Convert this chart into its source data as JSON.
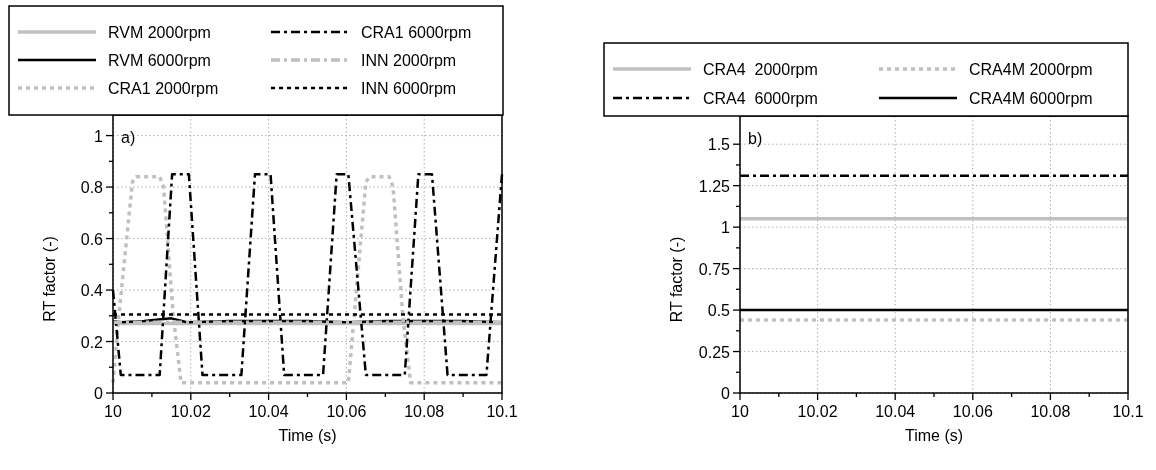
{
  "chart_data": [
    {
      "type": "line",
      "xlabel": "Time (s)",
      "ylabel": "RT factor (-)",
      "annotations": [
        "a)"
      ],
      "grid": true,
      "legend": "top",
      "xlim": [
        10,
        10.1
      ],
      "xticks": [
        10,
        {
          "value": 10.01,
          "label": null
        },
        10.02,
        {
          "value": 10.03,
          "label": null
        },
        10.04,
        {
          "value": 10.05,
          "label": null
        },
        10.06,
        {
          "value": 10.07,
          "label": null
        },
        10.08,
        {
          "value": 10.09,
          "label": null
        },
        10.1
      ],
      "ylim": [
        0,
        1.08
      ],
      "yticks": [
        0,
        {
          "value": 0.1,
          "label": null
        },
        0.2,
        {
          "value": 0.3,
          "label": null
        },
        0.4,
        {
          "value": 0.5,
          "label": null
        },
        0.6,
        {
          "value": 0.7,
          "label": null
        },
        0.8,
        {
          "value": 0.9,
          "label": null
        },
        1
      ],
      "series": [
        {
          "name": "RVM 2000rpm",
          "color": "#c0c0c0",
          "line_style": "solid",
          "x": [
            10,
            10.02,
            10.04,
            10.06,
            10.08,
            10.1
          ],
          "values": [
            0.27,
            0.27,
            0.27,
            0.27,
            0.27,
            0.27
          ]
        },
        {
          "name": "RVM 6000rpm",
          "color": "#000000",
          "line_style": "solid",
          "x": [
            10,
            10.002,
            10.008,
            10.015,
            10.019,
            10.03,
            10.04,
            10.05,
            10.06,
            10.07,
            10.08,
            10.09,
            10.1
          ],
          "values": [
            0.28,
            0.275,
            0.28,
            0.29,
            0.275,
            0.28,
            0.28,
            0.28,
            0.275,
            0.28,
            0.28,
            0.28,
            0.275
          ]
        },
        {
          "name": "CRA1 2000rpm",
          "color": "#c0c0c0",
          "line_style": "dotted",
          "x": [
            10,
            10.0015,
            10.005,
            10.006,
            10.012,
            10.013,
            10.0155,
            10.0175,
            10.0605,
            10.062,
            10.065,
            10.066,
            10.071,
            10.072,
            10.0745,
            10.0765,
            10.1
          ],
          "values": [
            0.04,
            0.3,
            0.82,
            0.84,
            0.84,
            0.8,
            0.3,
            0.04,
            0.04,
            0.3,
            0.82,
            0.84,
            0.84,
            0.8,
            0.3,
            0.04,
            0.04
          ]
        },
        {
          "name": "CRA1 6000rpm",
          "color": "#000000",
          "line_style": "dashdot",
          "x": [
            10,
            10.002,
            10.012,
            10.0152,
            10.0195,
            10.023,
            10.033,
            10.0365,
            10.0405,
            10.044,
            10.054,
            10.0575,
            10.0605,
            10.065,
            10.075,
            10.0785,
            10.082,
            10.086,
            10.096,
            10.1
          ],
          "values": [
            0.4,
            0.07,
            0.07,
            0.85,
            0.85,
            0.07,
            0.07,
            0.85,
            0.85,
            0.07,
            0.07,
            0.85,
            0.85,
            0.07,
            0.07,
            0.85,
            0.85,
            0.07,
            0.07,
            0.85
          ]
        },
        {
          "name": "INN 2000rpm",
          "color": "#c0c0c0",
          "line_style": "dashdot",
          "x": [
            10,
            10.05,
            10.1
          ],
          "values": [
            0.275,
            0.275,
            0.275
          ]
        },
        {
          "name": "INN 6000rpm",
          "color": "#000000",
          "line_style": "dotted",
          "x": [
            10,
            10.05,
            10.1
          ],
          "values": [
            0.305,
            0.305,
            0.305
          ]
        }
      ]
    },
    {
      "type": "line",
      "xlabel": "Time (s)",
      "ylabel": "RT factor (-)",
      "annotations": [
        "b)"
      ],
      "grid": true,
      "legend": "top",
      "xlim": [
        10,
        10.1
      ],
      "xticks": [
        10,
        {
          "value": 10.01,
          "label": null
        },
        10.02,
        {
          "value": 10.03,
          "label": null
        },
        10.04,
        {
          "value": 10.05,
          "label": null
        },
        10.06,
        {
          "value": 10.07,
          "label": null
        },
        10.08,
        {
          "value": 10.09,
          "label": null
        },
        10.1
      ],
      "ylim": [
        0,
        1.67
      ],
      "yticks": [
        0,
        {
          "value": 0.125,
          "label": null
        },
        0.25,
        {
          "value": 0.375,
          "label": null
        },
        0.5,
        {
          "value": 0.625,
          "label": null
        },
        0.75,
        {
          "value": 0.875,
          "label": null
        },
        1,
        {
          "value": 1.125,
          "label": null
        },
        1.25,
        {
          "value": 1.375,
          "label": null
        },
        1.5
      ],
      "series": [
        {
          "name": "CRA4  2000rpm",
          "color": "#c0c0c0",
          "line_style": "solid",
          "x": [
            10,
            10.02,
            10.04,
            10.06,
            10.08,
            10.1
          ],
          "values": [
            1.05,
            1.05,
            1.05,
            1.05,
            1.05,
            1.05
          ]
        },
        {
          "name": "CRA4  6000rpm",
          "color": "#000000",
          "line_style": "dashdot",
          "x": [
            10,
            10.02,
            10.04,
            10.06,
            10.08,
            10.1
          ],
          "values": [
            1.31,
            1.31,
            1.31,
            1.31,
            1.31,
            1.31
          ]
        },
        {
          "name": "CRA4M 2000rpm",
          "color": "#c0c0c0",
          "line_style": "dotted",
          "x": [
            10,
            10.02,
            10.04,
            10.06,
            10.08,
            10.1
          ],
          "values": [
            0.44,
            0.44,
            0.44,
            0.44,
            0.44,
            0.44
          ]
        },
        {
          "name": "CRA4M 6000rpm",
          "color": "#000000",
          "line_style": "solid",
          "x": [
            10,
            10.02,
            10.04,
            10.06,
            10.08,
            10.1
          ],
          "values": [
            0.5,
            0.5,
            0.5,
            0.5,
            0.5,
            0.5
          ]
        }
      ]
    }
  ]
}
